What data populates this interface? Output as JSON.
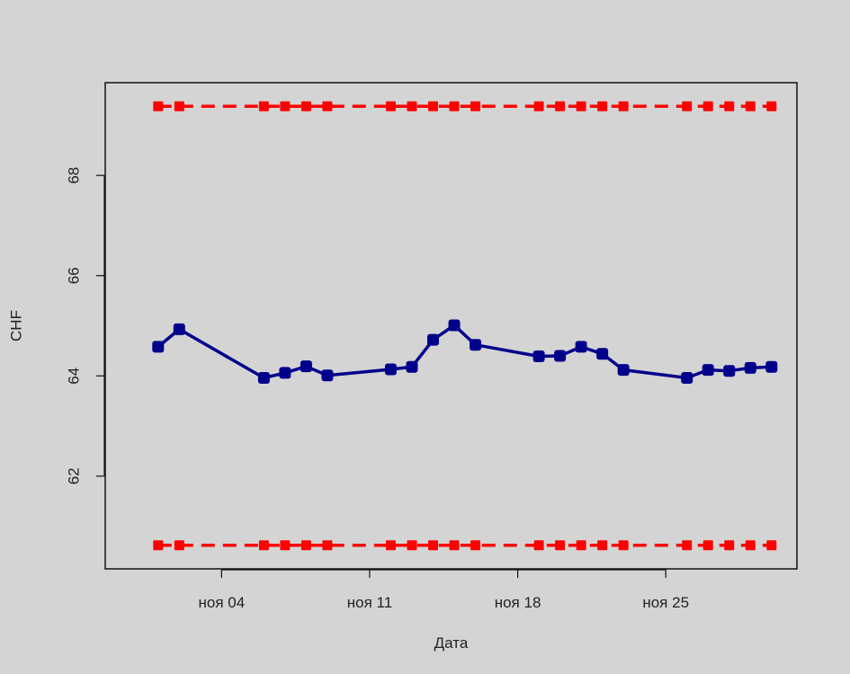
{
  "chart_data": {
    "type": "line",
    "xlabel": "Дата",
    "ylabel": "CHF",
    "xlim": [
      -1.5,
      31.2
    ],
    "ylim": [
      60.15,
      69.85
    ],
    "x_ticks": [
      {
        "value": 4,
        "label": "ноя 04"
      },
      {
        "value": 11,
        "label": "ноя 11"
      },
      {
        "value": 18,
        "label": "ноя 18"
      },
      {
        "value": 25,
        "label": "ноя 25"
      }
    ],
    "y_ticks": [
      {
        "value": 62,
        "label": "62"
      },
      {
        "value": 64,
        "label": "64"
      },
      {
        "value": 66,
        "label": "66"
      },
      {
        "value": 68,
        "label": "68"
      }
    ],
    "grid": false,
    "series": [
      {
        "color": "#00008b",
        "style": "solid-line-with-square-markers",
        "x": [
          1,
          2,
          6,
          7,
          8,
          9,
          12,
          13,
          14,
          15,
          16,
          19,
          20,
          21,
          22,
          23,
          26,
          27,
          28,
          29,
          30
        ],
        "y": [
          64.58,
          64.93,
          63.96,
          64.06,
          64.19,
          64.01,
          64.13,
          64.18,
          64.72,
          65.01,
          64.62,
          64.39,
          64.4,
          64.58,
          64.44,
          64.12,
          63.96,
          64.12,
          64.1,
          64.16,
          64.18
        ]
      },
      {
        "color": "#ff0000",
        "style": "dashed-line-with-square-markers",
        "x": [
          1,
          2,
          6,
          7,
          8,
          9,
          12,
          13,
          14,
          15,
          16,
          19,
          20,
          21,
          22,
          23,
          26,
          27,
          28,
          29,
          30
        ],
        "y": [
          69.38,
          69.38,
          69.38,
          69.38,
          69.38,
          69.38,
          69.38,
          69.38,
          69.38,
          69.38,
          69.38,
          69.38,
          69.38,
          69.38,
          69.38,
          69.38,
          69.38,
          69.38,
          69.38,
          69.38,
          69.38
        ]
      },
      {
        "color": "#ff0000",
        "style": "dashed-line-with-square-markers",
        "x": [
          1,
          2,
          6,
          7,
          8,
          9,
          12,
          13,
          14,
          15,
          16,
          19,
          20,
          21,
          22,
          23,
          26,
          27,
          28,
          29,
          30
        ],
        "y": [
          60.62,
          60.62,
          60.62,
          60.62,
          60.62,
          60.62,
          60.62,
          60.62,
          60.62,
          60.62,
          60.62,
          60.62,
          60.62,
          60.62,
          60.62,
          60.62,
          60.62,
          60.62,
          60.62,
          60.62,
          60.62
        ]
      }
    ]
  }
}
